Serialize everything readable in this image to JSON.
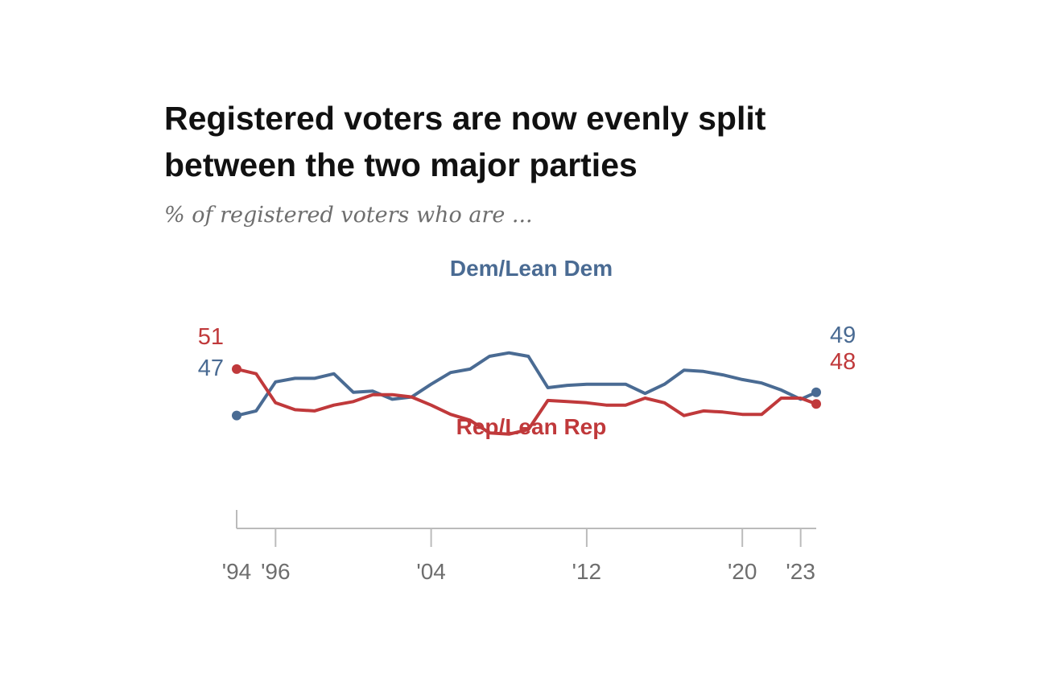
{
  "chart_data": {
    "type": "line",
    "title": "Registered voters are now evenly split between the two major parties",
    "subtitle": "% of registered voters who are ...",
    "x_ticks": [
      1994,
      1996,
      2004,
      2012,
      2020,
      2023
    ],
    "x_tick_labels": [
      "'94",
      "'96",
      "'04",
      "'12",
      "'20",
      "'23"
    ],
    "xlim": [
      1994,
      2023.8
    ],
    "ylim": [
      35,
      62
    ],
    "grid": false,
    "colors": {
      "dem": "#4a6b93",
      "rep": "#c0393b",
      "axis": "#bbbbbb"
    },
    "series": [
      {
        "name": "Dem/Lean Dem",
        "color": "#4a6b93",
        "x": [
          1994,
          1995,
          1996,
          1997,
          1998,
          1999,
          2000,
          2001,
          2002,
          2003,
          2004,
          2005,
          2006,
          2007,
          2008,
          2009,
          2010,
          2011,
          2012,
          2013,
          2014,
          2015,
          2016,
          2017,
          2018,
          2019,
          2020,
          2021,
          2022,
          2023,
          2023.8
        ],
        "values": [
          47,
          47.4,
          49.9,
          50.2,
          50.2,
          50.6,
          49,
          49.1,
          48.4,
          48.6,
          49.7,
          50.7,
          51,
          52.1,
          52.4,
          52.1,
          49.4,
          49.6,
          49.7,
          49.7,
          49.7,
          48.9,
          49.7,
          50.9,
          50.8,
          50.5,
          50.1,
          49.8,
          49.2,
          48.4,
          49
        ]
      },
      {
        "name": "Rep/Lean Rep",
        "color": "#c0393b",
        "x": [
          1994,
          1995,
          1996,
          1997,
          1998,
          1999,
          2000,
          2001,
          2002,
          2003,
          2004,
          2005,
          2006,
          2007,
          2008,
          2009,
          2010,
          2011,
          2012,
          2013,
          2014,
          2015,
          2016,
          2017,
          2018,
          2019,
          2020,
          2021,
          2022,
          2023,
          2023.8
        ],
        "values": [
          51,
          50.6,
          48.1,
          47.5,
          47.4,
          47.9,
          48.2,
          48.8,
          48.8,
          48.6,
          47.9,
          47.1,
          46.6,
          45.5,
          45.4,
          45.8,
          48.3,
          48.2,
          48.1,
          47.9,
          47.9,
          48.5,
          48.1,
          47,
          47.4,
          47.3,
          47.1,
          47.1,
          48.5,
          48.5,
          48
        ]
      }
    ],
    "series_labels": {
      "dem": "Dem/Lean Dem",
      "rep": "Rep/Lean Rep"
    },
    "start_labels": {
      "dem": "47",
      "rep": "51"
    },
    "end_labels": {
      "dem": "49",
      "rep": "48"
    }
  }
}
